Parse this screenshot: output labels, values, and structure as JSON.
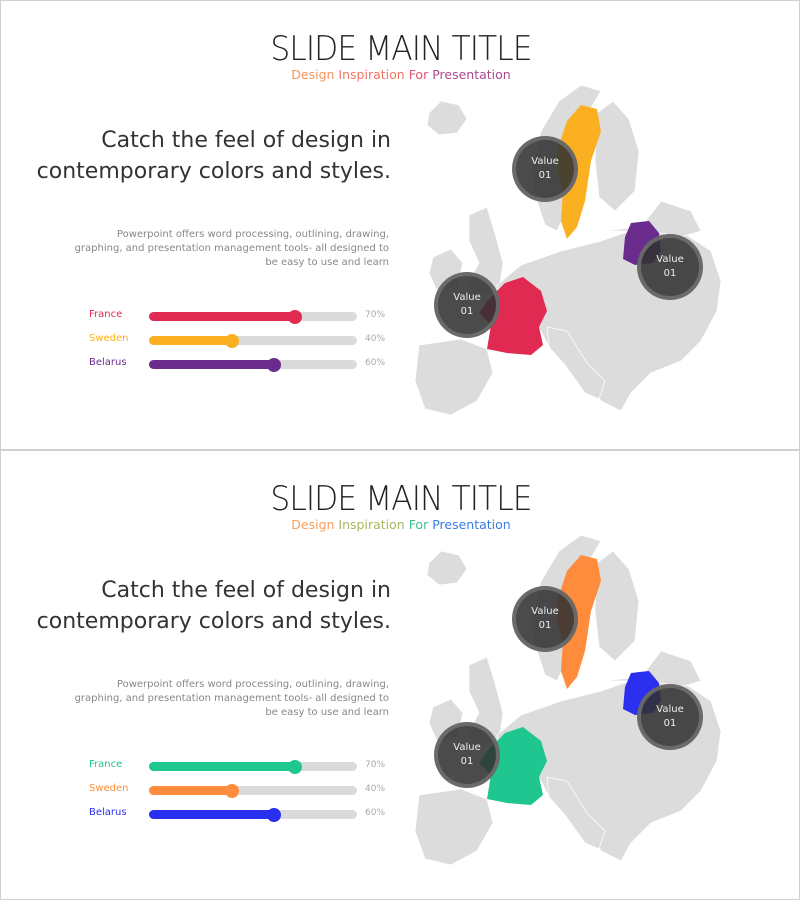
{
  "slides": [
    {
      "title": "SLIDE MAIN TITLE",
      "subtitle_words": [
        {
          "text": "Design",
          "color": "#f4935a"
        },
        {
          "text": "Inspiration",
          "color": "#ef7563"
        },
        {
          "text": "For",
          "color": "#e4506e"
        },
        {
          "text": "Presentation",
          "color": "#a84c8e"
        }
      ],
      "headline_1": "Catch the feel of design in",
      "headline_2": "contemporary colors and styles.",
      "body": "Powerpoint offers word processing, outlining, drawing, graphing, and presentation management tools- all designed to be easy to use and learn",
      "bars": [
        {
          "label": "France",
          "value": 70,
          "value_label": "70%",
          "color": "#e02a52"
        },
        {
          "label": "Sweden",
          "value": 40,
          "value_label": "40%",
          "color": "#fbb021"
        },
        {
          "label": "Belarus",
          "value": 60,
          "value_label": "60%",
          "color": "#6a2c8c"
        }
      ],
      "bubbles": [
        {
          "label": "Value",
          "value": "01"
        },
        {
          "label": "Value",
          "value": "01"
        },
        {
          "label": "Value",
          "value": "01"
        }
      ]
    },
    {
      "title": "SLIDE MAIN TITLE",
      "subtitle_words": [
        {
          "text": "Design",
          "color": "#f4a060"
        },
        {
          "text": "Inspiration",
          "color": "#a8b860"
        },
        {
          "text": "For",
          "color": "#3cc08a"
        },
        {
          "text": "Presentation",
          "color": "#3a7de0"
        }
      ],
      "headline_1": "Catch the feel of design in",
      "headline_2": "contemporary colors and styles.",
      "body": "Powerpoint offers word processing, outlining, drawing, graphing, and presentation management tools- all designed to be easy to use and learn",
      "bars": [
        {
          "label": "France",
          "value": 70,
          "value_label": "70%",
          "color": "#1fc690"
        },
        {
          "label": "Sweden",
          "value": 40,
          "value_label": "40%",
          "color": "#ff8c3c"
        },
        {
          "label": "Belarus",
          "value": 60,
          "value_label": "60%",
          "color": "#2a2ff0"
        }
      ],
      "bubbles": [
        {
          "label": "Value",
          "value": "01"
        },
        {
          "label": "Value",
          "value": "01"
        },
        {
          "label": "Value",
          "value": "01"
        }
      ]
    }
  ]
}
